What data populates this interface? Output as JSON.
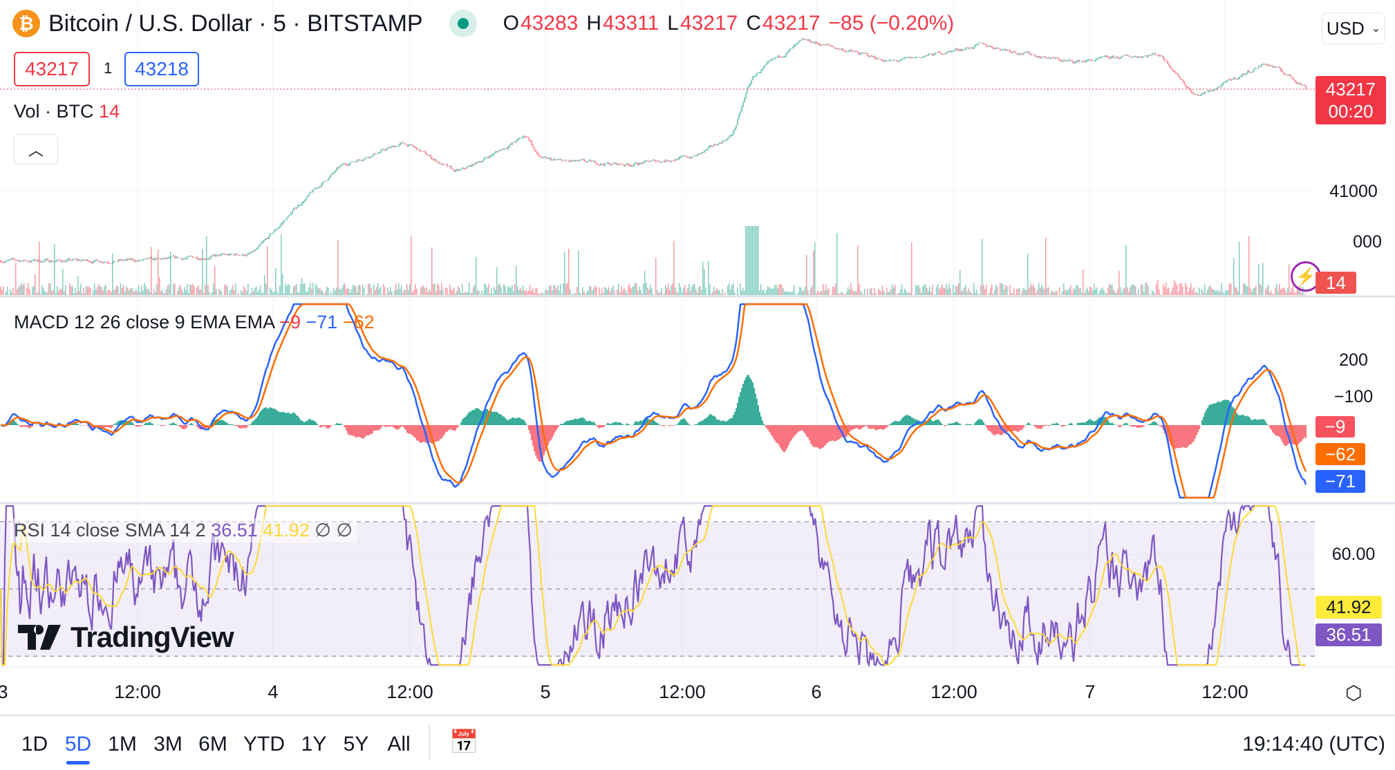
{
  "header": {
    "symbol_title": "Bitcoin / U.S. Dollar · 5 · BITSTAMP",
    "ohlc": {
      "o_label": "O",
      "o": "43283",
      "h_label": "H",
      "h": "43311",
      "l_label": "L",
      "l": "43217",
      "c_label": "C",
      "c": "43217",
      "change": "−85 (−0.20%)"
    },
    "sell_price": "43217",
    "spread": "1",
    "buy_price": "43218",
    "currency": "USD"
  },
  "volume": {
    "label": "Vol · BTC",
    "value": "14"
  },
  "macd": {
    "label": "MACD 12 26 close 9 EMA EMA",
    "hist": "−9",
    "macd": "−71",
    "signal": "−62"
  },
  "rsi": {
    "label": "RSI 14 close SMA 14 2",
    "rsi": "36.51",
    "sma": "41.92",
    "e1": "∅",
    "e2": "∅"
  },
  "price_axis": {
    "last_price": "43217",
    "countdown": "00:20",
    "tick_41000": "41000",
    "vol_tick": "000",
    "vol_tag": "14"
  },
  "macd_axis": {
    "tick_200": "200",
    "tick_low": "−100"
  },
  "rsi_axis": {
    "tick_60": "60.00"
  },
  "logo": "TradingView",
  "bottom_bar": {
    "ranges": [
      "1D",
      "5D",
      "1M",
      "3M",
      "6M",
      "YTD",
      "1Y",
      "5Y",
      "All"
    ],
    "active": "5D",
    "clock": "19:14:40 (UTC)"
  },
  "colors": {
    "up": "#089981",
    "down": "#f23645",
    "macd": "#2962ff",
    "signal": "#ff6d00",
    "rsi": "#7e57c2",
    "rsi_sma": "#fdd835",
    "btc": "#f7931a"
  },
  "chart_data": {
    "type": "candlestick",
    "title": "Bitcoin / U.S. Dollar · 5 · BITSTAMP",
    "x_ticks": [
      "3",
      "12:00",
      "4",
      "12:00",
      "5",
      "12:00",
      "6",
      "12:00",
      "7",
      "12:00"
    ],
    "price_waypoints": [
      [
        0,
        39500
      ],
      [
        0.109,
        39500
      ],
      [
        0.191,
        39650
      ],
      [
        0.225,
        40710
      ],
      [
        0.259,
        41580
      ],
      [
        0.307,
        42060
      ],
      [
        0.347,
        41390
      ],
      [
        0.402,
        42250
      ],
      [
        0.409,
        41680
      ],
      [
        0.477,
        41580
      ],
      [
        0.531,
        41770
      ],
      [
        0.559,
        42250
      ],
      [
        0.572,
        43500
      ],
      [
        0.613,
        44280
      ],
      [
        0.681,
        43800
      ],
      [
        0.749,
        44180
      ],
      [
        0.817,
        43800
      ],
      [
        0.886,
        43990
      ],
      [
        0.913,
        43020
      ],
      [
        0.967,
        43800
      ],
      [
        1,
        43217
      ]
    ],
    "last": {
      "open": 43283,
      "high": 43311,
      "low": 43217,
      "close": 43217
    },
    "macd_ylim": [
      -150,
      380
    ],
    "rsi_ylim": [
      25,
      75
    ],
    "rsi_bands": [
      30,
      50,
      70
    ]
  }
}
